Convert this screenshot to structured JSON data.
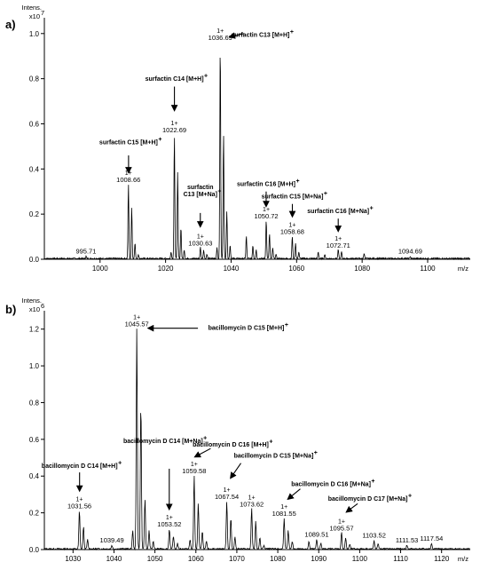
{
  "chart_data": [
    {
      "type": "line",
      "panel": "a)",
      "y_title": "Intens.",
      "y_multiplier_base": "x10",
      "y_multiplier_exp": "7",
      "xlabel": "m/z",
      "xlim": [
        983,
        1113
      ],
      "ylim": [
        0,
        1.07
      ],
      "x_ticks": [
        1000,
        1020,
        1040,
        1060,
        1080,
        1100
      ],
      "y_ticks": [
        "0.0",
        "0.2",
        "0.4",
        "0.6",
        "0.8",
        "1.0"
      ],
      "peaks": [
        {
          "mz": 995.71,
          "y": 0.01,
          "label": "995.71",
          "charge": ""
        },
        {
          "mz": 1008.66,
          "y": 0.33,
          "label": "1008.66",
          "charge": "1+"
        },
        {
          "mz": 1009.66,
          "y": 0.23,
          "label": "",
          "charge": ""
        },
        {
          "mz": 1010.66,
          "y": 0.07,
          "label": "",
          "charge": ""
        },
        {
          "mz": 1011.7,
          "y": 0.02,
          "label": "",
          "charge": ""
        },
        {
          "mz": 1021.69,
          "y": 0.03,
          "label": "",
          "charge": ""
        },
        {
          "mz": 1022.69,
          "y": 0.55,
          "label": "1022.69",
          "charge": "1+"
        },
        {
          "mz": 1023.69,
          "y": 0.38,
          "label": "",
          "charge": ""
        },
        {
          "mz": 1024.69,
          "y": 0.14,
          "label": "",
          "charge": ""
        },
        {
          "mz": 1025.7,
          "y": 0.04,
          "label": "",
          "charge": ""
        },
        {
          "mz": 1030.63,
          "y": 0.05,
          "label": "1030.63",
          "charge": "1+"
        },
        {
          "mz": 1031.63,
          "y": 0.04,
          "label": "",
          "charge": ""
        },
        {
          "mz": 1032.63,
          "y": 0.02,
          "label": "",
          "charge": ""
        },
        {
          "mz": 1035.69,
          "y": 0.05,
          "label": "",
          "charge": ""
        },
        {
          "mz": 1036.69,
          "y": 0.96,
          "label": "1036.69",
          "charge": "1+"
        },
        {
          "mz": 1037.69,
          "y": 0.56,
          "label": "",
          "charge": ""
        },
        {
          "mz": 1038.69,
          "y": 0.21,
          "label": "",
          "charge": ""
        },
        {
          "mz": 1039.7,
          "y": 0.06,
          "label": "",
          "charge": ""
        },
        {
          "mz": 1044.65,
          "y": 0.1,
          "label": "",
          "charge": ""
        },
        {
          "mz": 1046.65,
          "y": 0.06,
          "label": "",
          "charge": ""
        },
        {
          "mz": 1047.66,
          "y": 0.04,
          "label": "",
          "charge": ""
        },
        {
          "mz": 1050.72,
          "y": 0.17,
          "label": "1050.72",
          "charge": "1+"
        },
        {
          "mz": 1051.72,
          "y": 0.11,
          "label": "",
          "charge": ""
        },
        {
          "mz": 1052.72,
          "y": 0.05,
          "label": "",
          "charge": ""
        },
        {
          "mz": 1053.72,
          "y": 0.02,
          "label": "",
          "charge": ""
        },
        {
          "mz": 1058.68,
          "y": 0.1,
          "label": "1058.68",
          "charge": "1+"
        },
        {
          "mz": 1059.68,
          "y": 0.07,
          "label": "",
          "charge": ""
        },
        {
          "mz": 1060.68,
          "y": 0.03,
          "label": "",
          "charge": ""
        },
        {
          "mz": 1066.6,
          "y": 0.03,
          "label": "",
          "charge": ""
        },
        {
          "mz": 1068.6,
          "y": 0.02,
          "label": "",
          "charge": ""
        },
        {
          "mz": 1072.71,
          "y": 0.04,
          "label": "1072.71",
          "charge": "1+"
        },
        {
          "mz": 1073.71,
          "y": 0.03,
          "label": "",
          "charge": ""
        },
        {
          "mz": 1080.6,
          "y": 0.025,
          "label": "",
          "charge": ""
        },
        {
          "mz": 1094.69,
          "y": 0.01,
          "label": "1094.69",
          "charge": ""
        }
      ],
      "annotations": [
        {
          "lines": [
            "surfactin C13 [M+H]",
            "+"
          ],
          "mz": 1008.66
        },
        {
          "lines": [
            "surfactin C14 [M+H]",
            "+"
          ],
          "mz": 1022.69
        },
        {
          "lines": [
            "surfactin C15 [M+H]",
            "+"
          ],
          "mz": 1036.69
        },
        {
          "lines": [
            "surfactin",
            "C13 [M+Na]",
            "+"
          ],
          "mz": 1030.63
        },
        {
          "lines": [
            "surfactin C16 [M+H]",
            "+"
          ],
          "mz": 1050.72
        },
        {
          "lines": [
            "surfactin C15 [M+Na]",
            "+"
          ],
          "mz": 1058.68
        },
        {
          "lines": [
            "surfactin C16 [M+Na]",
            "+"
          ],
          "mz": 1072.71
        }
      ]
    },
    {
      "type": "line",
      "panel": "b)",
      "y_title": "Intens.",
      "y_multiplier_base": "x10",
      "y_multiplier_exp": "6",
      "xlabel": "m/z",
      "xlim": [
        1023,
        1127
      ],
      "ylim": [
        0,
        1.3
      ],
      "x_ticks": [
        1030,
        1040,
        1050,
        1060,
        1070,
        1080,
        1090,
        1100,
        1110,
        1120
      ],
      "y_ticks": [
        "0.0",
        "0.2",
        "0.4",
        "0.6",
        "0.8",
        "1.0",
        "1.2"
      ],
      "peaks": [
        {
          "mz": 1031.56,
          "y": 0.21,
          "label": "1031.56",
          "charge": "1+"
        },
        {
          "mz": 1032.56,
          "y": 0.12,
          "label": "",
          "charge": ""
        },
        {
          "mz": 1033.56,
          "y": 0.05,
          "label": "",
          "charge": ""
        },
        {
          "mz": 1039.49,
          "y": 0.02,
          "label": "1039.49",
          "charge": ""
        },
        {
          "mz": 1044.57,
          "y": 0.1,
          "label": "",
          "charge": ""
        },
        {
          "mz": 1045.57,
          "y": 1.2,
          "label": "1045.57",
          "charge": "1+"
        },
        {
          "mz": 1046.57,
          "y": 0.8,
          "label": "",
          "charge": ""
        },
        {
          "mz": 1047.57,
          "y": 0.27,
          "label": "",
          "charge": ""
        },
        {
          "mz": 1048.57,
          "y": 0.1,
          "label": "",
          "charge": ""
        },
        {
          "mz": 1049.58,
          "y": 0.04,
          "label": "",
          "charge": ""
        },
        {
          "mz": 1053.52,
          "y": 0.11,
          "label": "1053.52",
          "charge": "1+"
        },
        {
          "mz": 1054.52,
          "y": 0.07,
          "label": "",
          "charge": ""
        },
        {
          "mz": 1055.52,
          "y": 0.03,
          "label": "",
          "charge": ""
        },
        {
          "mz": 1058.58,
          "y": 0.05,
          "label": "",
          "charge": ""
        },
        {
          "mz": 1059.58,
          "y": 0.4,
          "label": "1059.58",
          "charge": "1+"
        },
        {
          "mz": 1060.58,
          "y": 0.25,
          "label": "",
          "charge": ""
        },
        {
          "mz": 1061.58,
          "y": 0.1,
          "label": "",
          "charge": ""
        },
        {
          "mz": 1062.58,
          "y": 0.04,
          "label": "",
          "charge": ""
        },
        {
          "mz": 1067.54,
          "y": 0.26,
          "label": "1067.54",
          "charge": "1+"
        },
        {
          "mz": 1068.54,
          "y": 0.17,
          "label": "",
          "charge": ""
        },
        {
          "mz": 1069.54,
          "y": 0.07,
          "label": "",
          "charge": ""
        },
        {
          "mz": 1073.62,
          "y": 0.22,
          "label": "1073.62",
          "charge": "1+"
        },
        {
          "mz": 1074.62,
          "y": 0.15,
          "label": "",
          "charge": ""
        },
        {
          "mz": 1075.62,
          "y": 0.06,
          "label": "",
          "charge": ""
        },
        {
          "mz": 1076.62,
          "y": 0.02,
          "label": "",
          "charge": ""
        },
        {
          "mz": 1081.55,
          "y": 0.17,
          "label": "1081.55",
          "charge": "1+"
        },
        {
          "mz": 1082.55,
          "y": 0.1,
          "label": "",
          "charge": ""
        },
        {
          "mz": 1083.55,
          "y": 0.04,
          "label": "",
          "charge": ""
        },
        {
          "mz": 1087.6,
          "y": 0.04,
          "label": "",
          "charge": ""
        },
        {
          "mz": 1089.51,
          "y": 0.05,
          "label": "1089.51",
          "charge": ""
        },
        {
          "mz": 1090.51,
          "y": 0.03,
          "label": "",
          "charge": ""
        },
        {
          "mz": 1095.57,
          "y": 0.09,
          "label": "1095.57",
          "charge": "1+"
        },
        {
          "mz": 1096.57,
          "y": 0.06,
          "label": "",
          "charge": ""
        },
        {
          "mz": 1097.57,
          "y": 0.025,
          "label": "",
          "charge": ""
        },
        {
          "mz": 1103.52,
          "y": 0.045,
          "label": "1103.52",
          "charge": ""
        },
        {
          "mz": 1104.52,
          "y": 0.03,
          "label": "",
          "charge": ""
        },
        {
          "mz": 1111.53,
          "y": 0.02,
          "label": "1111.53",
          "charge": ""
        },
        {
          "mz": 1117.54,
          "y": 0.03,
          "label": "1117.54",
          "charge": ""
        }
      ],
      "annotations": [
        {
          "lines": [
            "bacillomycin D C15 [M+H]",
            "+"
          ],
          "mz": 1045.57
        },
        {
          "lines": [
            "bacillomycin D C14 [M+H]",
            "+"
          ],
          "mz": 1031.56
        },
        {
          "lines": [
            "bacillomycin D C14 [M+Na]",
            "+"
          ],
          "mz": 1053.52
        },
        {
          "lines": [
            "bacillomycin D C16 [M+H]",
            "+"
          ],
          "mz": 1059.58
        },
        {
          "lines": [
            "bacillomycin D C15 [M+Na]",
            "+"
          ],
          "mz": 1067.54
        },
        {
          "lines": [
            "bacillomycin D C16 [M+Na]",
            "+"
          ],
          "mz": 1081.55
        },
        {
          "lines": [
            "bacillomycin D C17 [M+Na]",
            "+"
          ],
          "mz": 1095.57
        }
      ]
    }
  ]
}
